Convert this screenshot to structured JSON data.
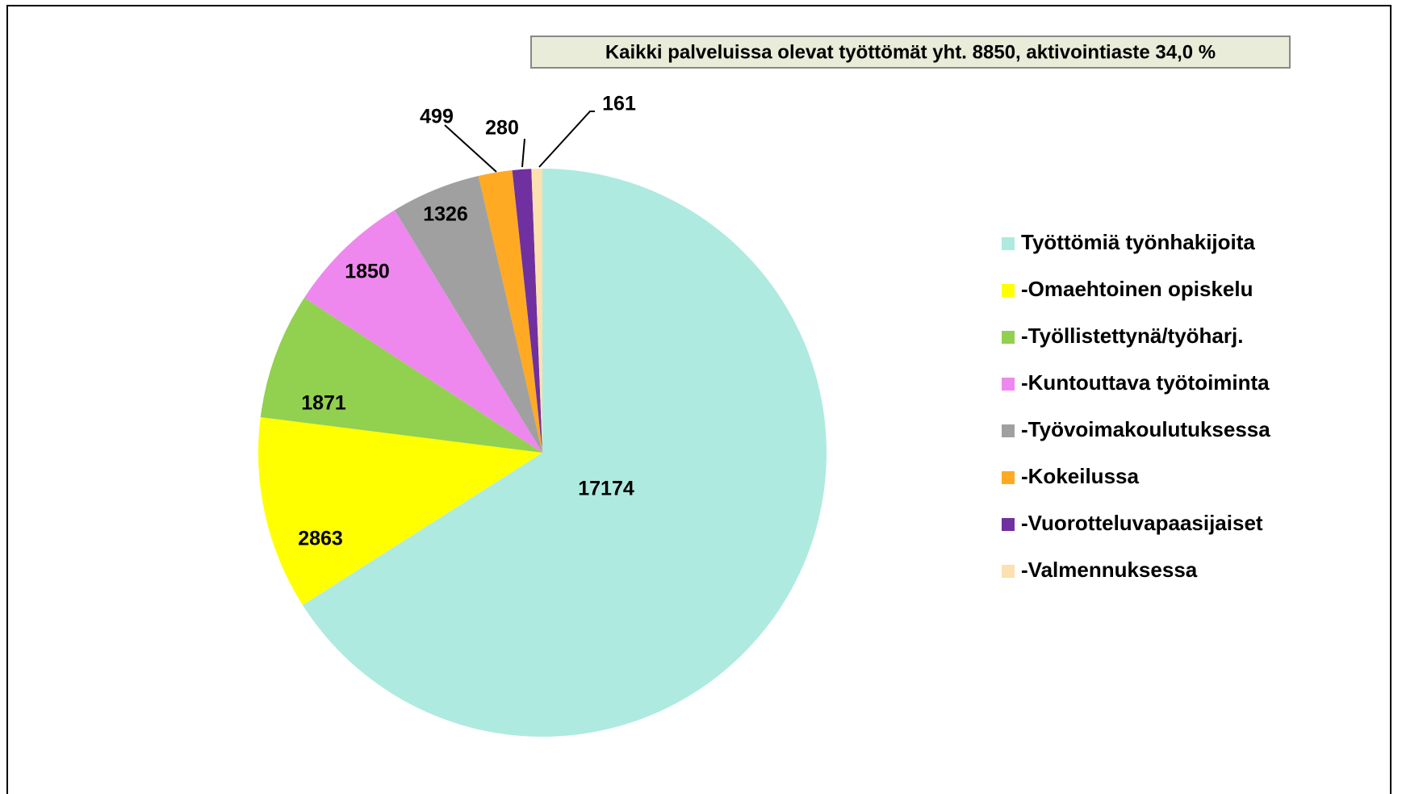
{
  "chart_data": {
    "type": "pie",
    "title": "Kaikki palveluissa olevat työttömät yht. 8850, aktivointiaste 34,0 %",
    "categories": [
      "Työttömiä työnhakijoita",
      "-Omaehtoinen opiskelu",
      "-Työllistettynä/työharj.",
      "-Kuntouttava työtoiminta",
      "-Työvoimakoulutuksessa",
      "-Kokeilussa",
      "-Vuorotteluvapaasijaiset",
      "-Valmennuksessa"
    ],
    "values": [
      17174,
      2863,
      1871,
      1850,
      1326,
      499,
      280,
      161
    ],
    "colors": [
      "#aeeae0",
      "#ffff00",
      "#92d050",
      "#ee88ee",
      "#a0a0a0",
      "#ffaa22",
      "#7030a0",
      "#fde0b0"
    ],
    "legend": "right"
  }
}
